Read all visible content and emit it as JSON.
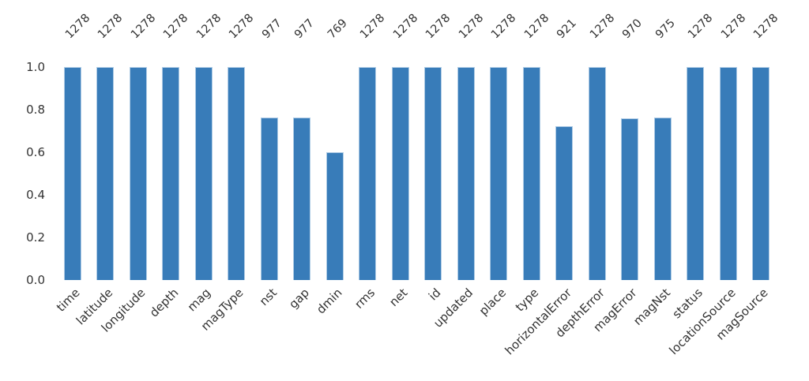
{
  "chart_data": {
    "type": "bar",
    "title": "",
    "xlabel": "",
    "ylabel": "",
    "categories": [
      "time",
      "latitude",
      "longitude",
      "depth",
      "mag",
      "magType",
      "nst",
      "gap",
      "dmin",
      "rms",
      "net",
      "id",
      "updated",
      "place",
      "type",
      "horizontalError",
      "depthError",
      "magError",
      "magNst",
      "status",
      "locationSource",
      "magSource"
    ],
    "counts": [
      1278,
      1278,
      1278,
      1278,
      1278,
      1278,
      977,
      977,
      769,
      1278,
      1278,
      1278,
      1278,
      1278,
      1278,
      921,
      1278,
      970,
      975,
      1278,
      1278,
      1278
    ],
    "values": [
      1.0,
      1.0,
      1.0,
      1.0,
      1.0,
      1.0,
      0.764,
      0.764,
      0.602,
      1.0,
      1.0,
      1.0,
      1.0,
      1.0,
      1.0,
      0.721,
      1.0,
      0.759,
      0.763,
      1.0,
      1.0,
      1.0
    ],
    "total": 1278,
    "y_ticks": [
      1.0,
      0.8,
      0.6,
      0.4,
      0.2,
      0.0
    ],
    "y_tick_labels": [
      "1.0",
      "0.8",
      "0.6",
      "0.4",
      "0.2",
      "0.0"
    ],
    "ylim": [
      0,
      1.0
    ],
    "grid": false,
    "legend_position": "none",
    "bar_color": "#387cb9",
    "bar_edge_color": "#aecbe5"
  }
}
